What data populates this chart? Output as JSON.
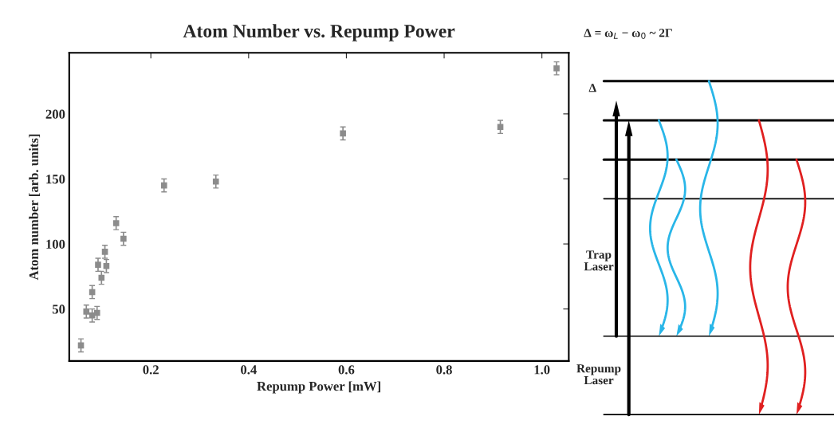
{
  "chart_data": {
    "type": "scatter",
    "title": "Atom Number vs. Repump Power",
    "xlabel": "Repump Power [mW]",
    "ylabel": "Atom number [arb. units]",
    "x": [
      0.057,
      0.068,
      0.08,
      0.08,
      0.09,
      0.092,
      0.099,
      0.106,
      0.109,
      0.129,
      0.144,
      0.227,
      0.333,
      0.593,
      0.915,
      1.03
    ],
    "series": [
      {
        "color": "#8c8c8c",
        "values": [
          22,
          48,
          63,
          45,
          47,
          84,
          74,
          94,
          83,
          116,
          104,
          145,
          148,
          185,
          190,
          235
        ],
        "errors": [
          5,
          5,
          5,
          5,
          5,
          5,
          5,
          5,
          5,
          5,
          5,
          5,
          5,
          5,
          5,
          5
        ]
      }
    ],
    "marker": "square",
    "grid": false,
    "xlim": [
      0.033,
      1.055
    ],
    "xticks": [
      {
        "value": 0.2,
        "label": "0.2"
      },
      {
        "value": 0.4,
        "label": "0.4"
      },
      {
        "value": 0.6,
        "label": "0.6"
      },
      {
        "value": 0.8,
        "label": "0.8"
      },
      {
        "value": 1.0,
        "label": "1.0"
      }
    ],
    "ylim": [
      10,
      247
    ],
    "yticks": [
      50,
      100,
      150,
      200
    ],
    "annotations": [
      "Δ = ω$_{L}$ − ω$_{0}$ ~ 2Γ",
      "Δ",
      "Trap\nLaser",
      "Repump\nLaser"
    ]
  }
}
